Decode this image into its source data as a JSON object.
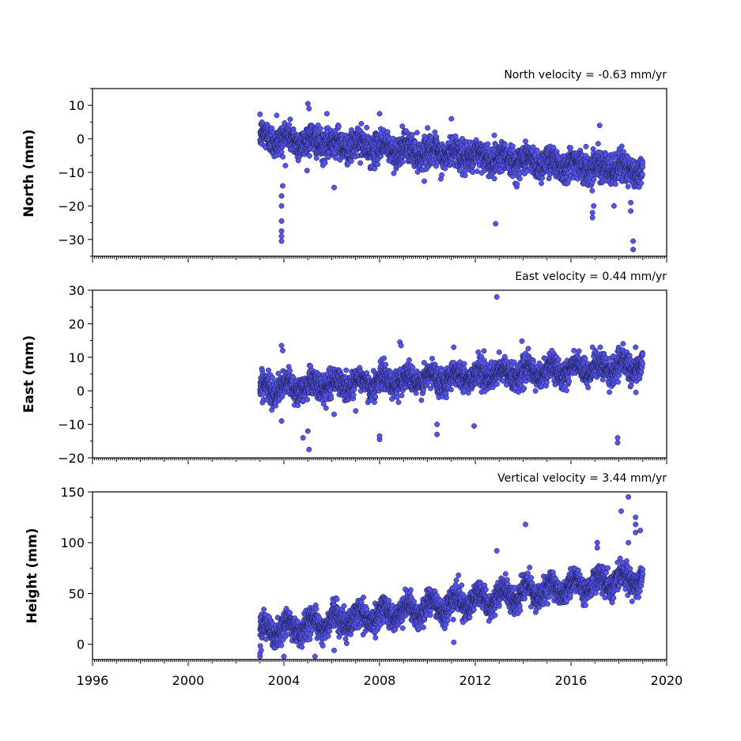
{
  "chart_data": [
    {
      "type": "scatter",
      "velocity_label": "North velocity = -0.63 mm/yr",
      "ylabel": "North (mm)",
      "xlim": [
        1996,
        2020
      ],
      "ylim": [
        -35,
        15
      ],
      "yticks": [
        10,
        0,
        -10,
        -20,
        -30
      ],
      "ytick_labels": [
        "10",
        "0",
        "−10",
        "−20",
        "−30"
      ],
      "series": [
        {
          "start": 2003.0,
          "end": 2019.0,
          "base": 0.5,
          "rate": -0.63,
          "noise": 2.2,
          "seasonal": 1.3,
          "outliers": [
            [
              2003.9,
              -30.5
            ],
            [
              2003.9,
              -29.0
            ],
            [
              2003.9,
              -27.5
            ],
            [
              2003.9,
              -24.5
            ],
            [
              2003.9,
              -20.0
            ],
            [
              2003.9,
              -17.0
            ],
            [
              2003.95,
              -14.0
            ],
            [
              2006.1,
              -14.5
            ],
            [
              2012.85,
              -25.3
            ],
            [
              2016.9,
              -23.5
            ],
            [
              2016.9,
              -22.0
            ],
            [
              2016.95,
              -20.0
            ],
            [
              2017.8,
              -20.0
            ],
            [
              2018.5,
              -21.5
            ],
            [
              2018.5,
              -19.0
            ],
            [
              2018.6,
              -30.5
            ],
            [
              2018.6,
              -33.0
            ],
            [
              2005.0,
              10.5
            ],
            [
              2005.05,
              9.0
            ],
            [
              2008.0,
              7.5
            ],
            [
              2003.7,
              7.0
            ],
            [
              2011.0,
              6.0
            ],
            [
              2017.2,
              4.0
            ],
            [
              2005.8,
              7.5
            ]
          ]
        }
      ]
    },
    {
      "type": "scatter",
      "velocity_label": "East velocity = 0.44 mm/yr",
      "ylabel": "East (mm)",
      "xlim": [
        1996,
        2020
      ],
      "ylim": [
        -20,
        30
      ],
      "yticks": [
        30,
        20,
        10,
        0,
        -10,
        -20
      ],
      "ytick_labels": [
        "30",
        "20",
        "10",
        "0",
        "−10",
        "−20"
      ],
      "series": [
        {
          "start": 2003.0,
          "end": 2019.0,
          "base": 0.5,
          "rate": 0.44,
          "noise": 1.9,
          "seasonal": 1.5,
          "outliers": [
            [
              2012.9,
              28.0
            ],
            [
              2003.9,
              13.5
            ],
            [
              2003.95,
              12.0
            ],
            [
              2008.85,
              14.5
            ],
            [
              2008.9,
              13.5
            ],
            [
              2011.1,
              13.0
            ],
            [
              2013.95,
              14.8
            ],
            [
              2016.9,
              13.0
            ],
            [
              2018.7,
              13.0
            ],
            [
              2005.05,
              -17.5
            ],
            [
              2004.8,
              -14.0
            ],
            [
              2005.0,
              -12.0
            ],
            [
              2008.0,
              -14.5
            ],
            [
              2008.0,
              -13.5
            ],
            [
              2017.95,
              -15.5
            ],
            [
              2017.95,
              -14.0
            ],
            [
              2010.4,
              -13.0
            ],
            [
              2010.4,
              -10.0
            ],
            [
              2011.95,
              -10.5
            ],
            [
              2003.9,
              -9.0
            ],
            [
              2006.1,
              -7.0
            ],
            [
              2007.0,
              -6.0
            ],
            [
              2013.0,
              11.5
            ],
            [
              2015.2,
              12.0
            ]
          ]
        }
      ]
    },
    {
      "type": "scatter",
      "velocity_label": "Vertical velocity = 3.44 mm/yr",
      "ylabel": "Height (mm)",
      "xlim": [
        1996,
        2020
      ],
      "xticks": [
        1996,
        2000,
        2004,
        2008,
        2012,
        2016,
        2020
      ],
      "xtick_labels": [
        "1996",
        "2000",
        "2004",
        "2008",
        "2012",
        "2016",
        "2020"
      ],
      "ylim": [
        -15,
        150
      ],
      "yticks": [
        150,
        100,
        50,
        0
      ],
      "ytick_labels": [
        "150",
        "100",
        "50",
        "0"
      ],
      "series": [
        {
          "start": 2003.0,
          "end": 2019.0,
          "base": 12,
          "rate": 3.44,
          "noise": 6.0,
          "seasonal": 7.0,
          "outliers": [
            [
              2018.4,
              145.0
            ],
            [
              2018.1,
              131.0
            ],
            [
              2018.7,
              125.0
            ],
            [
              2018.7,
              118.0
            ],
            [
              2018.9,
              112.0
            ],
            [
              2018.7,
              110.0
            ],
            [
              2014.1,
              118.0
            ],
            [
              2012.9,
              92.0
            ],
            [
              2017.1,
              100.0
            ],
            [
              2017.1,
              95.0
            ],
            [
              2018.4,
              100.0
            ],
            [
              2003.0,
              -12.0
            ],
            [
              2003.0,
              -9.0
            ],
            [
              2003.05,
              -6.0
            ],
            [
              2005.3,
              -12.0
            ],
            [
              2004.0,
              -12.0
            ],
            [
              2006.1,
              -6.0
            ],
            [
              2011.1,
              2.0
            ],
            [
              2016.9,
              65.0
            ],
            [
              2011.3,
              68.0
            ]
          ]
        }
      ]
    }
  ]
}
